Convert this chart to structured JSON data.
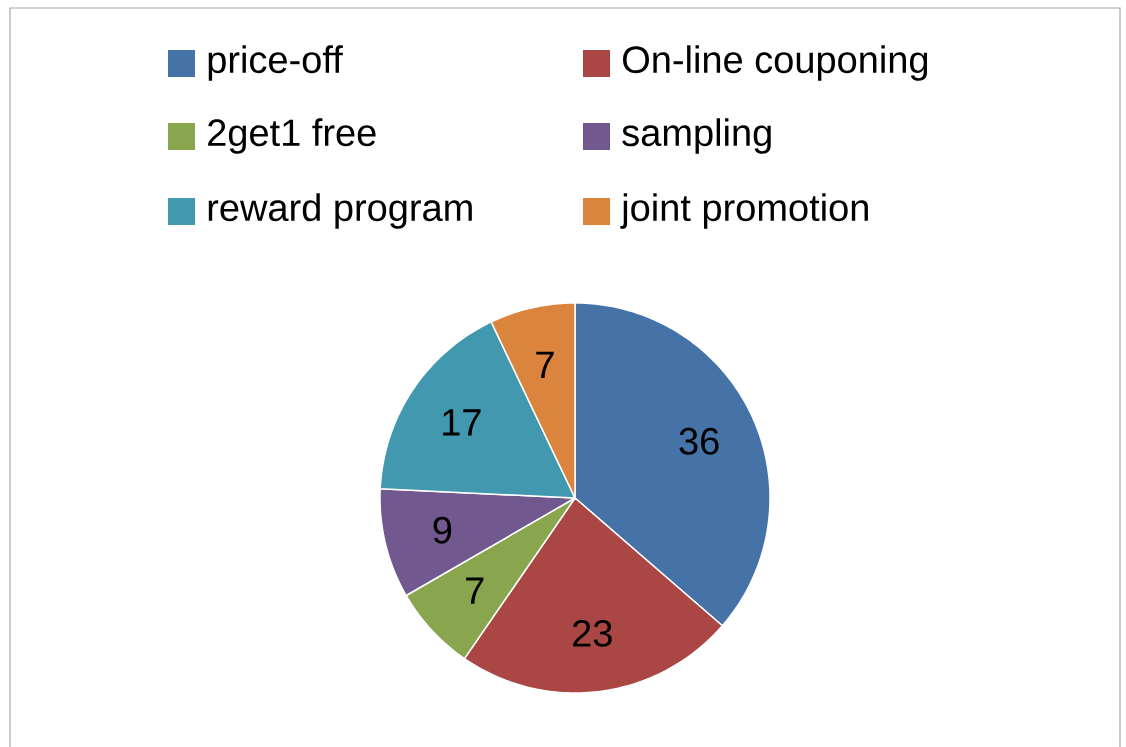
{
  "chart_data": {
    "type": "pie",
    "categories": [
      "price-off",
      "On-line couponing",
      "2get1 free",
      "sampling",
      "reward program",
      "joint promotion"
    ],
    "values": [
      36,
      23,
      7,
      9,
      17,
      7
    ],
    "colors": [
      "#4572a7",
      "#aa4643",
      "#89a54e",
      "#71588f",
      "#4198af",
      "#db843d"
    ],
    "legend": "top",
    "data_labels": true
  }
}
